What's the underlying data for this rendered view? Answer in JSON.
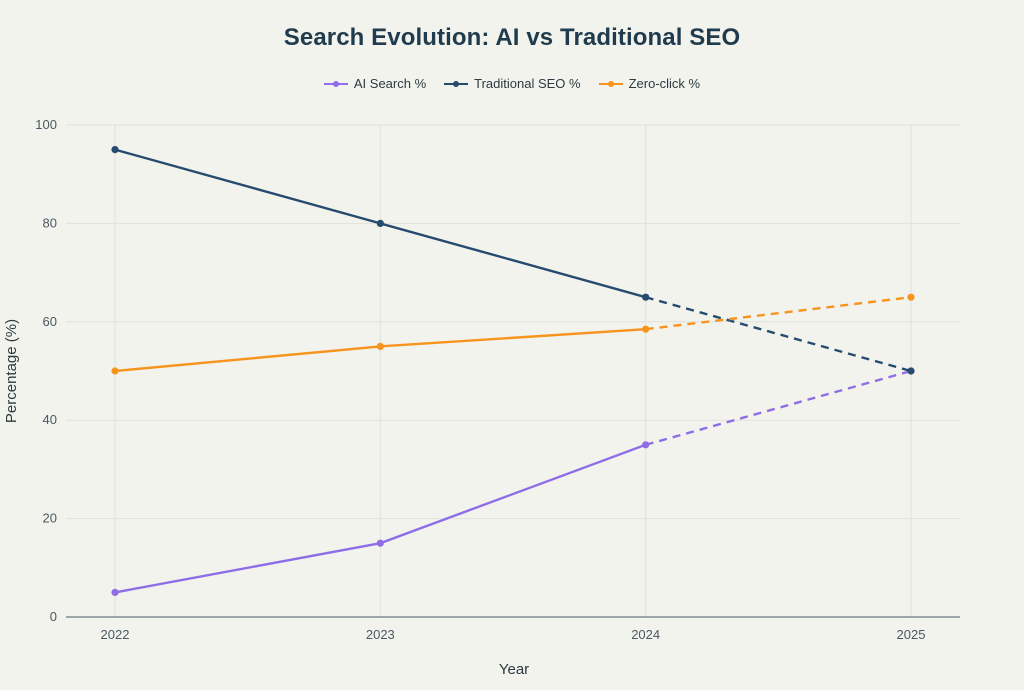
{
  "chart_data": {
    "type": "line",
    "title": "Search Evolution: AI vs Traditional SEO",
    "xlabel": "Year",
    "ylabel": "Percentage (%)",
    "categories": [
      "2022",
      "2023",
      "2024",
      "2025"
    ],
    "ylim": [
      0,
      100
    ],
    "yticks": [
      0,
      20,
      40,
      60,
      80,
      100
    ],
    "grid": true,
    "legend_position": "top-center",
    "projection_note": "segment from 2024 to 2025 is dashed (projection)",
    "series": [
      {
        "name": "AI Search %",
        "values": [
          5,
          15,
          35,
          50
        ],
        "color": "#8e6ee6"
      },
      {
        "name": "Traditional SEO %",
        "values": [
          95,
          80,
          65,
          50
        ],
        "color": "#264b6e"
      },
      {
        "name": "Zero-click %",
        "values": [
          50,
          55,
          58.5,
          65
        ],
        "color": "#f7941d"
      }
    ]
  },
  "colors": {
    "background": "#f3f3ee",
    "grid": "#e2e2dc",
    "axis": "#4b5960",
    "title": "#1f3b4d"
  }
}
